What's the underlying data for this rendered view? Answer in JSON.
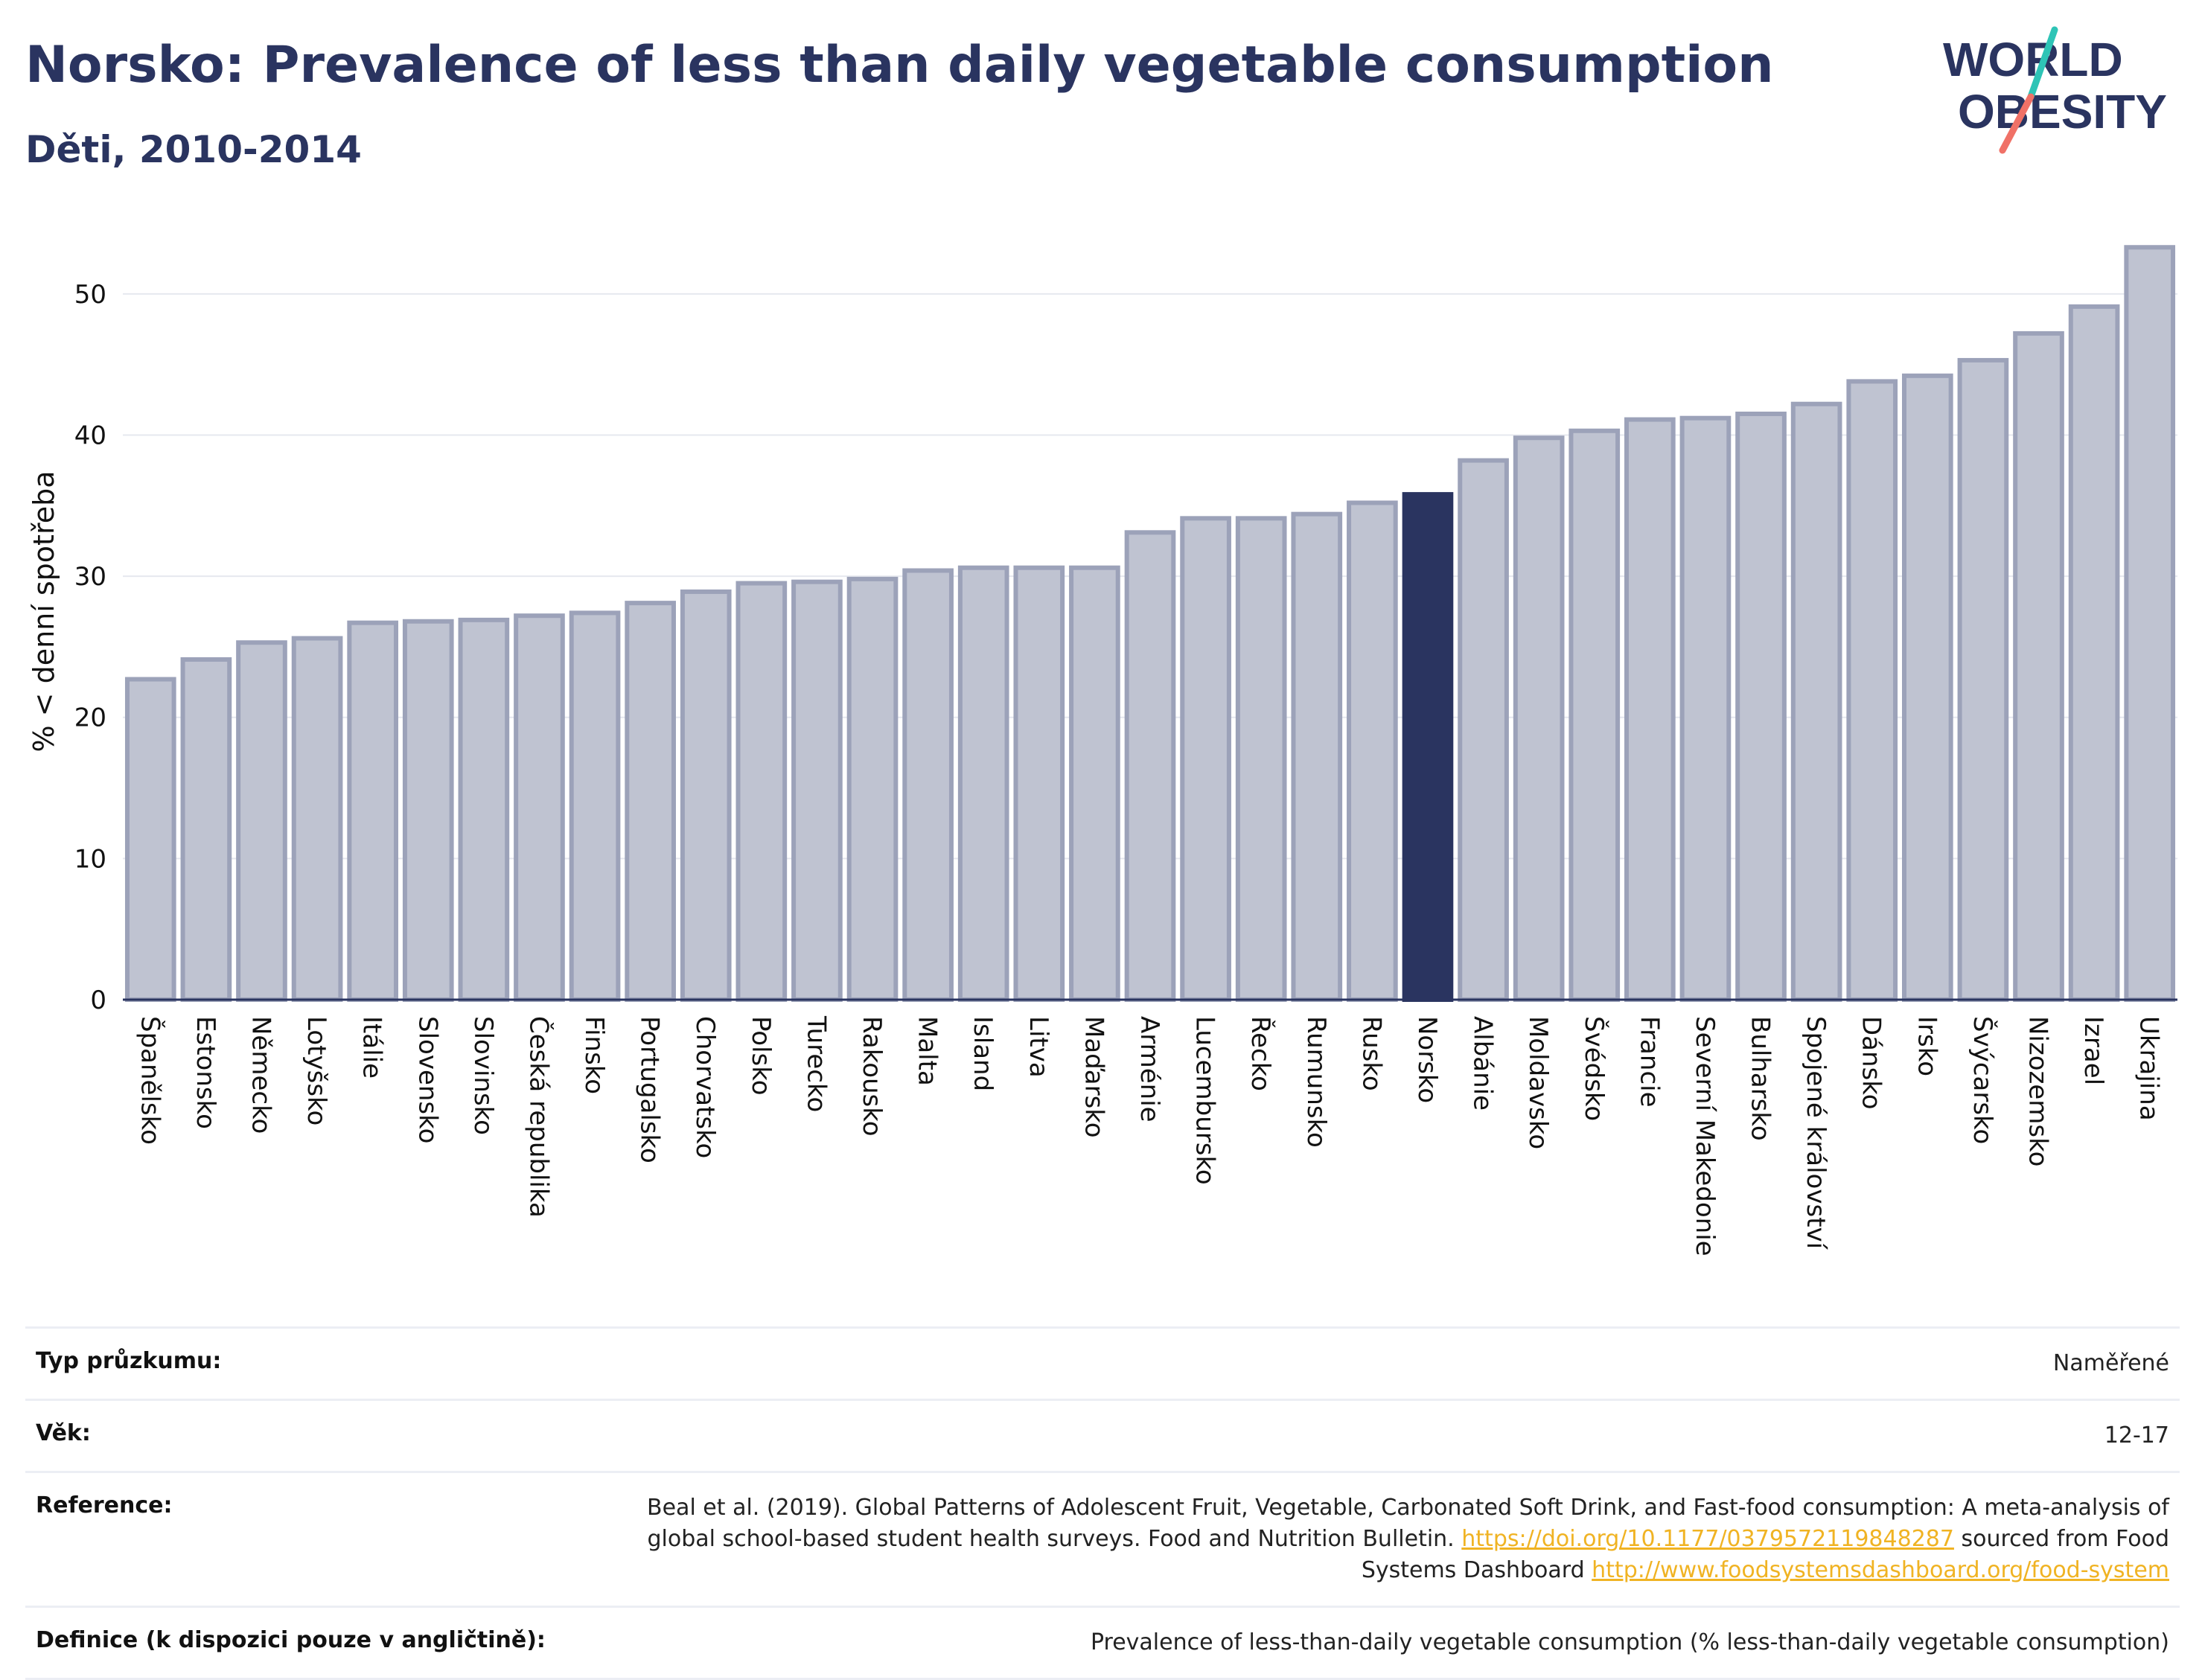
{
  "header": {
    "title": "Norsko: Prevalence of less than daily vegetable consumption",
    "subtitle": "Děti, 2010-2014"
  },
  "logo": {
    "line1": "WORLD",
    "line2": "OBESITY",
    "accent_teal": "#2ec4b6",
    "accent_coral": "#f07167",
    "text_color": "#2a3460"
  },
  "colors": {
    "bar": "#bfc3d1",
    "bar_border": "#9ca2b9",
    "highlight": "#2a3460",
    "grid": "#e6e8ef",
    "axis": "#2a3460"
  },
  "chart_data": {
    "type": "bar",
    "ylabel": "% < denní spotřeba",
    "xlabel": "",
    "ylim": [
      0,
      55
    ],
    "yticks": [
      0,
      10,
      20,
      30,
      40,
      50
    ],
    "grid": true,
    "highlight": "Norsko",
    "categories": [
      "Španělsko",
      "Estonsko",
      "Německo",
      "Lotyšsko",
      "Itálie",
      "Slovensko",
      "Slovinsko",
      "Česká republika",
      "Finsko",
      "Portugalsko",
      "Chorvatsko",
      "Polsko",
      "Turecko",
      "Rakousko",
      "Malta",
      "Island",
      "Litva",
      "Maďarsko",
      "Arménie",
      "Lucembursko",
      "Řecko",
      "Rumunsko",
      "Rusko",
      "Norsko",
      "Albánie",
      "Moldavsko",
      "Švédsko",
      "Francie",
      "Severní Makedonie",
      "Bulharsko",
      "Spojené království",
      "Dánsko",
      "Irsko",
      "Švýcarsko",
      "Nizozemsko",
      "Izrael",
      "Ukrajina"
    ],
    "values": [
      22.7,
      24.1,
      25.3,
      25.6,
      26.7,
      26.8,
      26.9,
      27.2,
      27.4,
      28.1,
      28.9,
      29.5,
      29.6,
      29.8,
      30.4,
      30.6,
      30.6,
      30.6,
      33.1,
      34.1,
      34.1,
      34.4,
      35.2,
      35.8,
      38.2,
      39.8,
      40.3,
      41.1,
      41.2,
      41.5,
      42.2,
      43.8,
      44.2,
      45.3,
      47.2,
      49.1,
      53.3
    ]
  },
  "meta": {
    "rows": [
      {
        "key": "Typ průzkumu:",
        "value": "Naměřené"
      },
      {
        "key": "Věk:",
        "value": "12-17"
      },
      {
        "key": "Reference:",
        "value_before": "Beal et al. (2019). Global Patterns of Adolescent Fruit, Vegetable, Carbonated Soft Drink, and Fast-food consumption: A meta-analysis of global school-based student health surveys. Food and Nutrition Bulletin.",
        "link1": "https://doi.org/10.1177/0379572119848287",
        "value_middle": "sourced from Food Systems Dashboard",
        "link2": "http://www.foodsystemsdashboard.org/food-system"
      },
      {
        "key": "Definice (k dispozici pouze v angličtině):",
        "value": "Prevalence of less-than-daily vegetable consumption (% less-than-daily vegetable consumption)"
      }
    ]
  }
}
